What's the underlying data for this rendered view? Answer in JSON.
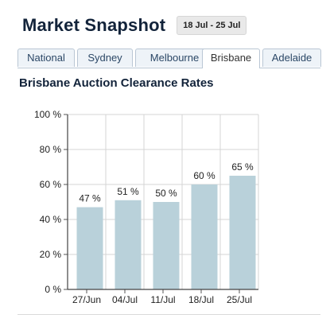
{
  "header": {
    "title": "Market Snapshot",
    "date_range": "18 Jul - 25 Jul"
  },
  "tabs": [
    {
      "label": "National",
      "active": false
    },
    {
      "label": "Sydney",
      "active": false
    },
    {
      "label": "Melbourne",
      "active": false
    },
    {
      "label": "Brisbane",
      "active": true
    },
    {
      "label": "Adelaide",
      "active": false
    }
  ],
  "chart_title": "Brisbane Auction Clearance Rates",
  "chart_data": {
    "type": "bar",
    "title": "Brisbane Auction Clearance Rates",
    "categories": [
      "27/Jun",
      "04/Jul",
      "11/Jul",
      "18/Jul",
      "25/Jul"
    ],
    "values": [
      47,
      51,
      50,
      60,
      65
    ],
    "data_labels": [
      "47 %",
      "51 %",
      "50 %",
      "60 %",
      "65 %"
    ],
    "yticks": [
      "0 %",
      "20 %",
      "40 %",
      "60 %",
      "80 %",
      "100 %"
    ],
    "ylim": [
      0,
      100
    ],
    "grid": true,
    "bar_color": "#b9d1da",
    "grid_color": "#d4d4d4"
  }
}
